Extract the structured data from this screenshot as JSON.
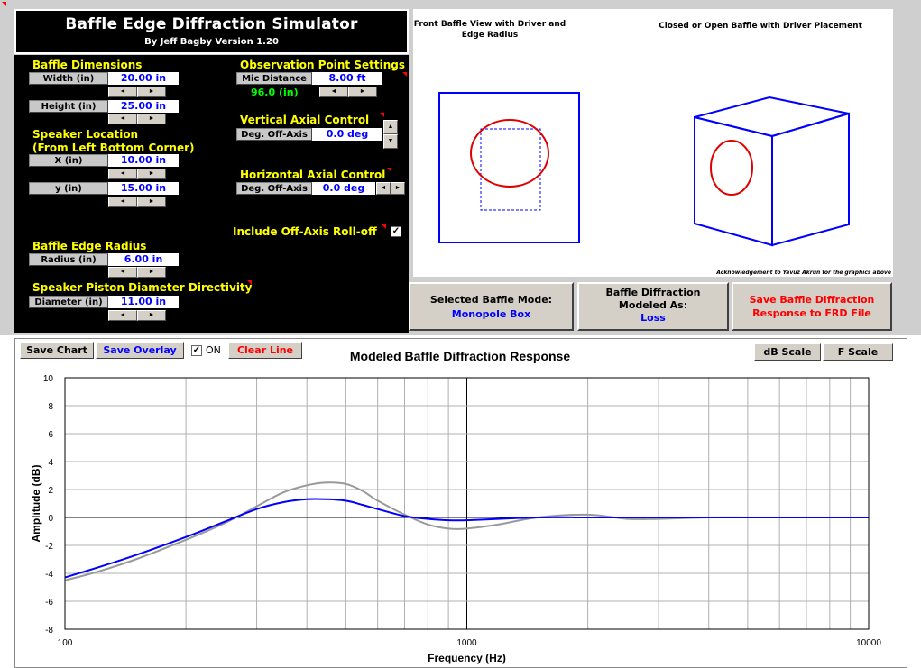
{
  "app": {
    "title": "Baffle Edge Diffraction Simulator",
    "subtitle": "By Jeff Bagby Version 1.20"
  },
  "baffle_dimensions": {
    "header": "Baffle Dimensions",
    "width_label": "Width (in)",
    "width_value": "20.00 in",
    "height_label": "Height (in)",
    "height_value": "25.00 in"
  },
  "speaker_location": {
    "header_line1": "Speaker Location",
    "header_line2": "(From Left Bottom Corner)",
    "x_label": "X (in)",
    "x_value": "10.00 in",
    "y_label": "y (in)",
    "y_value": "15.00 in"
  },
  "edge_radius": {
    "header": "Baffle Edge Radius",
    "label": "Radius (in)",
    "value": "6.00 in"
  },
  "piston": {
    "header": "Speaker Piston Diameter Directivity",
    "label": "Diameter (in)",
    "value": "11.00 in"
  },
  "observation": {
    "header": "Observation Point Settings",
    "mic_label": "Mic Distance",
    "mic_value": "8.00 ft",
    "mic_inches": "96.0 (in)"
  },
  "vertical_axial": {
    "header": "Vertical Axial Control",
    "label": "Deg. Off-Axis",
    "value": "0.0 deg"
  },
  "horizontal_axial": {
    "header": "Horizontal Axial Control",
    "label": "Deg. Off-Axis",
    "value": "0.0 deg"
  },
  "rolloff": {
    "label": "Include Off-Axis Roll-off",
    "checked": true,
    "check_glyph": "✓"
  },
  "spinner": {
    "left": "◄",
    "right": "►",
    "up": "▲",
    "down": "▼"
  },
  "graphics": {
    "front_caption": "Front Baffle View with Driver and Edge Radius",
    "box_caption": "Closed or Open Baffle with Driver Placement",
    "acknowledgement": "Acknowledgement to Yavuz Akrun for the graphics above"
  },
  "modes": {
    "selected_label": "Selected Baffle Mode:",
    "selected_value": "Monopole Box",
    "modeled_label_1": "Baffle Diffraction",
    "modeled_label_2": "Modeled As:",
    "modeled_value": "Loss",
    "save_frd_1": "Save Baffle Diffraction",
    "save_frd_2": "Response to FRD File"
  },
  "chart_toolbar": {
    "save_chart": "Save Chart",
    "save_overlay": "Save Overlay",
    "overlay_on": "ON",
    "overlay_check": "✓",
    "clear_line": "Clear Line",
    "db_scale": "dB Scale",
    "f_scale": "F Scale"
  },
  "colors": {
    "series_current": "#0000ff",
    "series_overlay": "#999999",
    "header_text": "#ffff00",
    "value_text": "#0000ff",
    "warning_text": "#ff0000"
  },
  "chart_data": {
    "type": "line",
    "title": "Modeled Baffle Diffraction Response",
    "xlabel": "Frequency (Hz)",
    "ylabel": "Amplitude (dB)",
    "x_scale": "log",
    "xlim": [
      100,
      10000
    ],
    "ylim": [
      -8,
      10
    ],
    "x_tick_labels": [
      "100",
      "1000",
      "10000"
    ],
    "y_ticks": [
      10,
      8,
      6,
      4,
      2,
      0,
      -2,
      -4,
      -6,
      -8
    ],
    "grid": true,
    "series": [
      {
        "color": "#999999",
        "x": [
          100,
          120,
          150,
          200,
          250,
          300,
          350,
          400,
          450,
          500,
          550,
          600,
          700,
          800,
          900,
          1000,
          1200,
          1500,
          2000,
          2500,
          3000,
          4000,
          5000,
          6000,
          8000,
          10000
        ],
        "y": [
          -4.5,
          -3.9,
          -3.0,
          -1.6,
          -0.4,
          0.8,
          1.8,
          2.3,
          2.5,
          2.4,
          1.9,
          1.2,
          0.2,
          -0.5,
          -0.8,
          -0.8,
          -0.5,
          0.0,
          0.2,
          -0.1,
          -0.1,
          0.0,
          0.0,
          0.0,
          0.0,
          0.0
        ]
      },
      {
        "color": "#0000ff",
        "x": [
          100,
          120,
          150,
          200,
          250,
          300,
          350,
          400,
          450,
          500,
          550,
          600,
          700,
          800,
          900,
          1000,
          1200,
          1500,
          2000,
          2500,
          3000,
          4000,
          5000,
          6000,
          8000,
          10000
        ],
        "y": [
          -4.3,
          -3.6,
          -2.7,
          -1.4,
          -0.3,
          0.6,
          1.1,
          1.3,
          1.3,
          1.2,
          0.9,
          0.6,
          0.1,
          -0.1,
          -0.2,
          -0.2,
          -0.1,
          0.0,
          0.0,
          0.0,
          0.0,
          0.0,
          0.0,
          0.0,
          0.0,
          0.0
        ]
      }
    ]
  }
}
